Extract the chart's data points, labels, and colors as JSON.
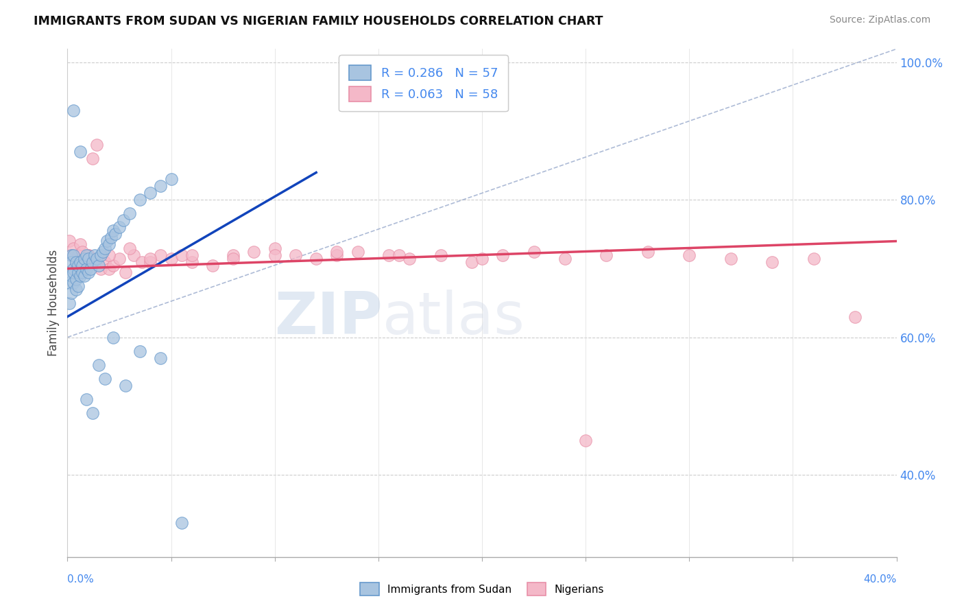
{
  "title": "IMMIGRANTS FROM SUDAN VS NIGERIAN FAMILY HOUSEHOLDS CORRELATION CHART",
  "source": "Source: ZipAtlas.com",
  "ylabel": "Family Households",
  "xlim": [
    0.0,
    0.4
  ],
  "ylim": [
    0.28,
    1.02
  ],
  "yticks_right": [
    0.4,
    0.6,
    0.8,
    1.0
  ],
  "yticklabels_right": [
    "40.0%",
    "60.0%",
    "80.0%",
    "100.0%"
  ],
  "sudan_color": "#a8c4e0",
  "sudan_edge": "#6699cc",
  "nigerian_color": "#f4b8c8",
  "nigerian_edge": "#e890a8",
  "trend_sudan_color": "#1144bb",
  "trend_nigerian_color": "#dd4466",
  "dashed_line_color": "#99aacc",
  "legend_R_sudan": "R = 0.286",
  "legend_N_sudan": "N = 57",
  "legend_R_nigerian": "R = 0.063",
  "legend_N_nigerian": "N = 58",
  "watermark_zip": "ZIP",
  "watermark_atlas": "atlas",
  "sudan_x": [
    0.001,
    0.001,
    0.002,
    0.002,
    0.002,
    0.002,
    0.003,
    0.003,
    0.003,
    0.003,
    0.004,
    0.004,
    0.004,
    0.005,
    0.005,
    0.005,
    0.006,
    0.006,
    0.007,
    0.007,
    0.008,
    0.008,
    0.009,
    0.009,
    0.01,
    0.01,
    0.011,
    0.012,
    0.013,
    0.014,
    0.015,
    0.016,
    0.017,
    0.018,
    0.019,
    0.02,
    0.021,
    0.022,
    0.023,
    0.025,
    0.027,
    0.03,
    0.035,
    0.04,
    0.045,
    0.05,
    0.003,
    0.006,
    0.009,
    0.012,
    0.015,
    0.018,
    0.022,
    0.028,
    0.035,
    0.045,
    0.055
  ],
  "sudan_y": [
    0.68,
    0.65,
    0.72,
    0.69,
    0.71,
    0.665,
    0.7,
    0.68,
    0.72,
    0.695,
    0.67,
    0.71,
    0.685,
    0.695,
    0.705,
    0.675,
    0.71,
    0.69,
    0.705,
    0.695,
    0.69,
    0.715,
    0.7,
    0.72,
    0.695,
    0.715,
    0.7,
    0.71,
    0.72,
    0.715,
    0.705,
    0.72,
    0.725,
    0.73,
    0.74,
    0.735,
    0.745,
    0.755,
    0.75,
    0.76,
    0.77,
    0.78,
    0.8,
    0.81,
    0.82,
    0.83,
    0.93,
    0.87,
    0.51,
    0.49,
    0.56,
    0.54,
    0.6,
    0.53,
    0.58,
    0.57,
    0.33
  ],
  "nigerian_x": [
    0.001,
    0.002,
    0.003,
    0.004,
    0.005,
    0.006,
    0.007,
    0.008,
    0.009,
    0.01,
    0.012,
    0.014,
    0.016,
    0.018,
    0.02,
    0.022,
    0.025,
    0.028,
    0.032,
    0.036,
    0.04,
    0.045,
    0.05,
    0.055,
    0.06,
    0.07,
    0.08,
    0.09,
    0.1,
    0.11,
    0.12,
    0.13,
    0.14,
    0.155,
    0.165,
    0.18,
    0.195,
    0.21,
    0.225,
    0.24,
    0.26,
    0.28,
    0.3,
    0.32,
    0.34,
    0.36,
    0.38,
    0.01,
    0.02,
    0.03,
    0.04,
    0.06,
    0.08,
    0.1,
    0.13,
    0.16,
    0.2,
    0.25
  ],
  "nigerian_y": [
    0.74,
    0.72,
    0.73,
    0.71,
    0.72,
    0.735,
    0.725,
    0.7,
    0.715,
    0.72,
    0.86,
    0.88,
    0.7,
    0.71,
    0.7,
    0.705,
    0.715,
    0.695,
    0.72,
    0.71,
    0.71,
    0.72,
    0.715,
    0.72,
    0.71,
    0.705,
    0.72,
    0.725,
    0.73,
    0.72,
    0.715,
    0.72,
    0.725,
    0.72,
    0.715,
    0.72,
    0.71,
    0.72,
    0.725,
    0.715,
    0.72,
    0.725,
    0.72,
    0.715,
    0.71,
    0.715,
    0.63,
    0.72,
    0.72,
    0.73,
    0.715,
    0.72,
    0.715,
    0.72,
    0.725,
    0.72,
    0.715,
    0.45
  ]
}
